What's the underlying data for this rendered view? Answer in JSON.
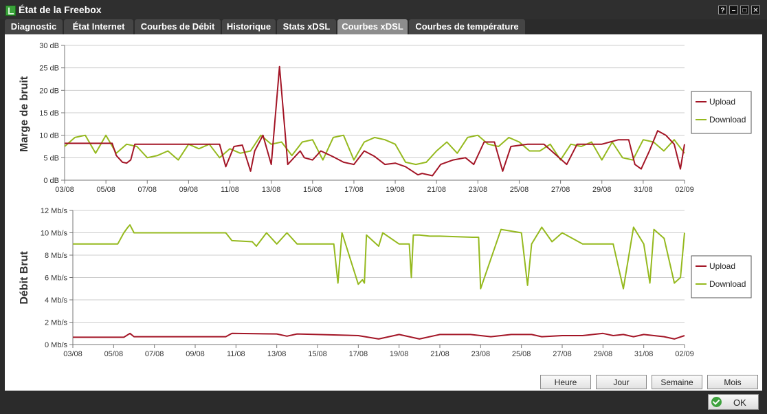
{
  "window": {
    "title": "État de la Freebox",
    "buttons": [
      "?",
      "–",
      "□",
      "✕"
    ]
  },
  "tabs": [
    {
      "label": "Diagnostic",
      "active": false
    },
    {
      "label": "État Internet",
      "active": false
    },
    {
      "label": "Courbes de Débit",
      "active": false
    },
    {
      "label": "Historique",
      "active": false
    },
    {
      "label": "Stats xDSL",
      "active": false
    },
    {
      "label": "Courbes xDSL",
      "active": true
    },
    {
      "label": "Courbes de température",
      "active": false
    }
  ],
  "range_buttons": [
    "Heure",
    "Jour",
    "Semaine",
    "Mois"
  ],
  "ok_button": "OK",
  "colors": {
    "upload": "#a31526",
    "download": "#95b91e",
    "grid": "#cccccc"
  },
  "chart_data": [
    {
      "type": "line",
      "ylabel": "Marge de bruit",
      "yticks": [
        "0 dB",
        "5 dB",
        "10 dB",
        "15 dB",
        "20 dB",
        "25 dB",
        "30 dB"
      ],
      "ylim": [
        0,
        30
      ],
      "xticks": [
        "03/08",
        "05/08",
        "07/08",
        "09/08",
        "11/08",
        "13/08",
        "15/08",
        "17/08",
        "19/08",
        "21/08",
        "23/08",
        "25/08",
        "27/08",
        "29/08",
        "31/08",
        "02/09"
      ],
      "xlim": [
        0,
        30
      ],
      "grid": true,
      "legend": "right",
      "series": [
        {
          "name": "Upload",
          "color": "#a31526",
          "x": [
            0,
            1.5,
            2.3,
            2.5,
            2.8,
            3.0,
            3.2,
            3.4,
            3.6,
            3.8,
            5,
            6,
            7.5,
            7.8,
            8.2,
            8.6,
            9,
            9.2,
            9.6,
            10,
            10.4,
            10.8,
            11.4,
            11.6,
            12,
            12.4,
            13,
            13.5,
            14,
            14.5,
            15,
            15.5,
            16,
            16.5,
            17.1,
            17.3,
            17.8,
            18.2,
            18.8,
            19.4,
            19.8,
            20.3,
            20.8,
            21.2,
            21.6,
            22.4,
            22.8,
            23.2,
            24.3,
            24.8,
            25.6,
            26,
            26.8,
            27.3,
            27.6,
            27.9,
            28.3,
            28.7,
            29.1,
            29.5,
            29.8,
            30
          ],
          "y": [
            8.2,
            8.2,
            8.2,
            5.5,
            4.0,
            3.8,
            4.5,
            8.0,
            8.0,
            8.0,
            8.0,
            8.0,
            8.0,
            3.0,
            7.5,
            7.8,
            2.0,
            6.5,
            10,
            3.5,
            25.3,
            3.5,
            6.5,
            5.0,
            4.5,
            6.5,
            5.2,
            4.0,
            3.5,
            6.5,
            5.3,
            3.5,
            3.8,
            3.0,
            1.2,
            1.5,
            1.0,
            3.5,
            4.5,
            5.0,
            3.5,
            8.5,
            8.5,
            2.0,
            7.5,
            8.0,
            8.0,
            8.0,
            3.5,
            8.0,
            8.0,
            8.0,
            9.0,
            9.0,
            3.5,
            2.5,
            6.5,
            11.0,
            10.0,
            8.0,
            2.5,
            8.0
          ]
        },
        {
          "name": "Download",
          "color": "#95b91e",
          "x": [
            0,
            0.5,
            1,
            1.5,
            2,
            2.5,
            3,
            3.5,
            4,
            4.5,
            5,
            5.5,
            6,
            6.5,
            7,
            7.5,
            8,
            8.5,
            9,
            9.5,
            10,
            10.5,
            11,
            11.5,
            12,
            12.5,
            13,
            13.5,
            14,
            14.5,
            15,
            15.5,
            16,
            16.5,
            17,
            17.5,
            18,
            18.5,
            19,
            19.5,
            20,
            20.5,
            21,
            21.5,
            22,
            22.5,
            23,
            23.5,
            24,
            24.5,
            25,
            25.5,
            26,
            26.5,
            27,
            27.5,
            28,
            28.5,
            29,
            29.5,
            30
          ],
          "y": [
            7.5,
            9.5,
            10,
            6.0,
            10,
            6.0,
            8.0,
            7.5,
            5.0,
            5.5,
            6.5,
            4.5,
            8.0,
            7.0,
            8.0,
            5.0,
            7.0,
            6.0,
            6.5,
            10,
            8.0,
            8.5,
            5.5,
            8.5,
            9.0,
            4.5,
            9.5,
            10,
            4.5,
            8.5,
            9.5,
            9.0,
            8.0,
            4.0,
            3.5,
            4.0,
            6.5,
            8.5,
            6.0,
            9.5,
            10,
            8.0,
            7.5,
            9.5,
            8.5,
            6.5,
            6.5,
            8.0,
            4.5,
            8.0,
            7.5,
            8.5,
            4.5,
            8.5,
            5.0,
            4.5,
            9.0,
            8.5,
            6.5,
            9.0,
            6.0
          ]
        }
      ]
    },
    {
      "type": "line",
      "ylabel": "Débit Brut",
      "yticks": [
        "0 Mb/s",
        "2 Mb/s",
        "4 Mb/s",
        "6 Mb/s",
        "8 Mb/s",
        "10 Mb/s",
        "12 Mb/s"
      ],
      "ylim": [
        0,
        12
      ],
      "xticks": [
        "03/08",
        "05/08",
        "07/08",
        "09/08",
        "11/08",
        "13/08",
        "15/08",
        "17/08",
        "19/08",
        "21/08",
        "23/08",
        "25/08",
        "27/08",
        "29/08",
        "31/08",
        "02/09"
      ],
      "xlim": [
        0,
        30
      ],
      "grid": true,
      "legend": "right",
      "series": [
        {
          "name": "Upload",
          "color": "#a31526",
          "x": [
            0,
            2.3,
            2.5,
            2.8,
            3.0,
            7.5,
            7.8,
            10,
            10.5,
            11,
            12,
            14,
            15,
            16,
            17,
            18,
            19.5,
            20.5,
            21.5,
            22.5,
            23,
            24,
            25,
            26,
            26.5,
            27,
            27.5,
            28,
            29,
            29.5,
            30
          ],
          "y": [
            0.65,
            0.65,
            0.65,
            1.0,
            0.7,
            0.7,
            1.0,
            0.95,
            0.75,
            0.95,
            0.9,
            0.8,
            0.5,
            0.9,
            0.5,
            0.9,
            0.9,
            0.7,
            0.9,
            0.9,
            0.7,
            0.8,
            0.8,
            1.0,
            0.8,
            0.9,
            0.7,
            0.9,
            0.7,
            0.5,
            0.8
          ]
        },
        {
          "name": "Download",
          "color": "#95b91e",
          "x": [
            0,
            2.2,
            2.5,
            2.7,
            2.8,
            3.0,
            7.5,
            7.8,
            8.8,
            9.0,
            9.5,
            10,
            10.5,
            11.0,
            12.8,
            13.0,
            13.2,
            14.0,
            14.2,
            14.3,
            14.4,
            15.0,
            15.2,
            16.0,
            16.5,
            16.6,
            16.7,
            17.0,
            17.5,
            18.0,
            19.6,
            19.9,
            20.0,
            21.0,
            22.0,
            22.3,
            22.5,
            23.0,
            23.5,
            24.0,
            25.0,
            26.0,
            26.5,
            27.0,
            27.5,
            28.0,
            28.3,
            28.5,
            29.0,
            29.5,
            29.8,
            30.0
          ],
          "y": [
            9.0,
            9.0,
            10.0,
            10.5,
            10.7,
            10.0,
            10.0,
            9.3,
            9.2,
            8.8,
            10.0,
            9.0,
            10.0,
            9.0,
            9.0,
            5.5,
            10.0,
            5.4,
            5.8,
            5.5,
            9.8,
            8.8,
            10.0,
            9.0,
            9.0,
            6.0,
            9.8,
            9.8,
            9.7,
            9.7,
            9.6,
            9.6,
            5.0,
            10.3,
            10.0,
            5.3,
            9.0,
            10.5,
            9.2,
            10.0,
            9.0,
            9.0,
            9.0,
            5.0,
            10.5,
            9.0,
            5.5,
            10.3,
            9.5,
            5.5,
            6.0,
            10.0
          ]
        }
      ]
    }
  ]
}
